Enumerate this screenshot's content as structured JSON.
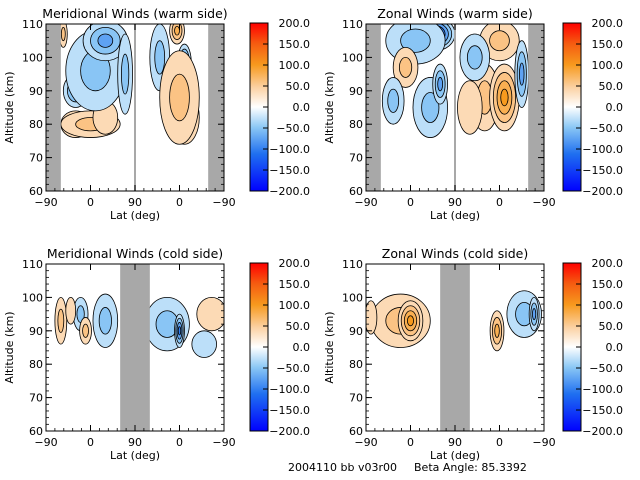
{
  "footer": {
    "id_text": "2004110 bb v03r00",
    "beta_text": "Beta Angle: 85.3392"
  },
  "colorbar": {
    "ticks": [
      "200.0",
      "150.0",
      "100.0",
      "50.0",
      "0.0",
      "−50.0",
      "−100.0",
      "−150.0",
      "−200.0"
    ],
    "range": [
      -200,
      200
    ],
    "colors": {
      "min": "#0000ff",
      "low": "#2f8ff0",
      "zero": "#ffffff",
      "high": "#f79a1e",
      "max": "#ff0000"
    }
  },
  "chart_data": [
    {
      "type": "heatmap",
      "title": "Meridional Winds (warm side)",
      "xlabel": "Lat (deg)",
      "ylabel": "Altitude (km)",
      "xticks": [
        "−90",
        "0",
        "90",
        "0",
        "−90"
      ],
      "xlim": [
        0,
        360
      ],
      "yticks": [
        "60",
        "70",
        "80",
        "90",
        "100",
        "110"
      ],
      "ylim": [
        60,
        110
      ],
      "gray_bands": [
        [
          0,
          30
        ],
        [
          178,
          182
        ],
        [
          328,
          360
        ]
      ],
      "blobs": [
        {
          "t": 60,
          "alt": 80,
          "rt": 30,
          "ra": 4,
          "v": 60
        },
        {
          "t": 90,
          "alt": 80,
          "rt": 60,
          "ra": 4,
          "v": 40
        },
        {
          "t": 120,
          "alt": 82,
          "rt": 25,
          "ra": 5,
          "v": 25
        },
        {
          "t": 60,
          "alt": 90,
          "rt": 25,
          "ra": 5,
          "v": -80
        },
        {
          "t": 100,
          "alt": 96,
          "rt": 60,
          "ra": 12,
          "v": -50
        },
        {
          "t": 120,
          "alt": 105,
          "rt": 45,
          "ra": 6,
          "v": -70
        },
        {
          "t": 160,
          "alt": 95,
          "rt": 15,
          "ra": 12,
          "v": -60
        },
        {
          "t": 230,
          "alt": 100,
          "rt": 20,
          "ra": 10,
          "v": -50
        },
        {
          "t": 280,
          "alt": 98,
          "rt": 14,
          "ra": 6,
          "v": -110
        },
        {
          "t": 280,
          "alt": 82,
          "rt": 30,
          "ra": 8,
          "v": 100
        },
        {
          "t": 270,
          "alt": 88,
          "rt": 40,
          "ra": 14,
          "v": 55
        },
        {
          "t": 265,
          "alt": 108,
          "rt": 15,
          "ra": 4,
          "v": 80
        },
        {
          "t": 35,
          "alt": 107,
          "rt": 8,
          "ra": 4,
          "v": 60
        }
      ]
    },
    {
      "type": "heatmap",
      "title": "Zonal Winds (warm side)",
      "xlabel": "Lat (deg)",
      "ylabel": "Altitude (km)",
      "xticks": [
        "−90",
        "0",
        "90",
        "0",
        "−90"
      ],
      "xlim": [
        0,
        360
      ],
      "yticks": [
        "60",
        "70",
        "80",
        "90",
        "100",
        "110"
      ],
      "ylim": [
        60,
        110
      ],
      "gray_bands": [
        [
          0,
          30
        ],
        [
          178,
          182
        ],
        [
          328,
          360
        ]
      ],
      "blobs": [
        {
          "t": 140,
          "alt": 107,
          "rt": 40,
          "ra": 5,
          "v": -140
        },
        {
          "t": 100,
          "alt": 105,
          "rt": 60,
          "ra": 7,
          "v": -60
        },
        {
          "t": 80,
          "alt": 97,
          "rt": 25,
          "ra": 6,
          "v": 60
        },
        {
          "t": 55,
          "alt": 87,
          "rt": 22,
          "ra": 7,
          "v": -60
        },
        {
          "t": 130,
          "alt": 85,
          "rt": 35,
          "ra": 9,
          "v": -60
        },
        {
          "t": 150,
          "alt": 92,
          "rt": 15,
          "ra": 6,
          "v": -70
        },
        {
          "t": 240,
          "alt": 88,
          "rt": 30,
          "ra": 10,
          "v": 50
        },
        {
          "t": 280,
          "alt": 88,
          "rt": 30,
          "ra": 10,
          "v": 100
        },
        {
          "t": 270,
          "alt": 105,
          "rt": 40,
          "ra": 6,
          "v": 60
        },
        {
          "t": 220,
          "alt": 100,
          "rt": 30,
          "ra": 7,
          "v": -40
        },
        {
          "t": 315,
          "alt": 95,
          "rt": 14,
          "ra": 10,
          "v": -70
        },
        {
          "t": 210,
          "alt": 85,
          "rt": 25,
          "ra": 8,
          "v": 30
        }
      ]
    },
    {
      "type": "heatmap",
      "title": "Meridional Winds (cold side)",
      "xlabel": "Lat (deg)",
      "ylabel": "Altitude (km)",
      "xticks": [
        "−90",
        "0",
        "90",
        "0",
        "−90"
      ],
      "xlim": [
        0,
        360
      ],
      "yticks": [
        "60",
        "70",
        "80",
        "90",
        "100",
        "110"
      ],
      "ylim": [
        60,
        110
      ],
      "gray_bands": [
        [
          150,
          210
        ]
      ],
      "blobs": [
        {
          "t": 30,
          "alt": 93,
          "rt": 12,
          "ra": 7,
          "v": 50
        },
        {
          "t": 70,
          "alt": 95,
          "rt": 15,
          "ra": 5,
          "v": -40
        },
        {
          "t": 80,
          "alt": 90,
          "rt": 12,
          "ra": 4,
          "v": 60
        },
        {
          "t": 120,
          "alt": 93,
          "rt": 25,
          "ra": 8,
          "v": -60
        },
        {
          "t": 245,
          "alt": 92,
          "rt": 45,
          "ra": 8,
          "v": -40
        },
        {
          "t": 270,
          "alt": 90,
          "rt": 10,
          "ra": 5,
          "v": -90
        },
        {
          "t": 335,
          "alt": 95,
          "rt": 30,
          "ra": 5,
          "v": 30
        },
        {
          "t": 50,
          "alt": 96,
          "rt": 10,
          "ra": 4,
          "v": 30
        },
        {
          "t": 320,
          "alt": 86,
          "rt": 25,
          "ra": 4,
          "v": -30
        }
      ]
    },
    {
      "type": "heatmap",
      "title": "Zonal Winds (cold side)",
      "xlabel": "Lat (deg)",
      "ylabel": "Altitude (km)",
      "xticks": [
        "−90",
        "0",
        "90",
        "0",
        "−90"
      ],
      "xlim": [
        0,
        360
      ],
      "yticks": [
        "60",
        "70",
        "80",
        "90",
        "100",
        "110"
      ],
      "ylim": [
        60,
        110
      ],
      "gray_bands": [
        [
          150,
          210
        ]
      ],
      "blobs": [
        {
          "t": 70,
          "alt": 93,
          "rt": 60,
          "ra": 8,
          "v": 40
        },
        {
          "t": 90,
          "alt": 93,
          "rt": 25,
          "ra": 6,
          "v": 110
        },
        {
          "t": 10,
          "alt": 94,
          "rt": 12,
          "ra": 5,
          "v": 30
        },
        {
          "t": 265,
          "alt": 90,
          "rt": 14,
          "ra": 6,
          "v": 80
        },
        {
          "t": 320,
          "alt": 95,
          "rt": 35,
          "ra": 7,
          "v": -40
        },
        {
          "t": 340,
          "alt": 95,
          "rt": 10,
          "ra": 5,
          "v": -70
        }
      ]
    }
  ]
}
